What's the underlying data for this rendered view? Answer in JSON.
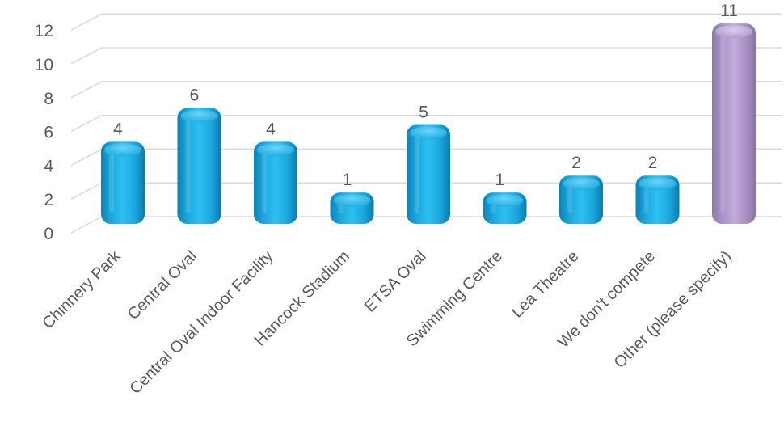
{
  "chart_data": {
    "type": "bar",
    "title": "",
    "xlabel": "",
    "ylabel": "",
    "categories": [
      "Chinnery Park",
      "Central Oval",
      "Central Oval Indoor Facility",
      "Hancock Stadium",
      "ETSA Oval",
      "Swimming Centre",
      "Lea Theatre",
      "We don't compete",
      "Other (please specify)"
    ],
    "values": [
      4,
      6,
      4,
      1,
      5,
      1,
      2,
      2,
      11
    ],
    "ylim": [
      0,
      12
    ],
    "yticks": [
      0,
      2,
      4,
      6,
      8,
      10,
      12
    ],
    "grid": true,
    "legend": "none",
    "colors": {
      "bar": "#1fb4ea",
      "highlight": "#b39dd1",
      "highlight_category": "Other (please specify)",
      "grid": "#d9d9d9",
      "text": "#595959"
    }
  }
}
